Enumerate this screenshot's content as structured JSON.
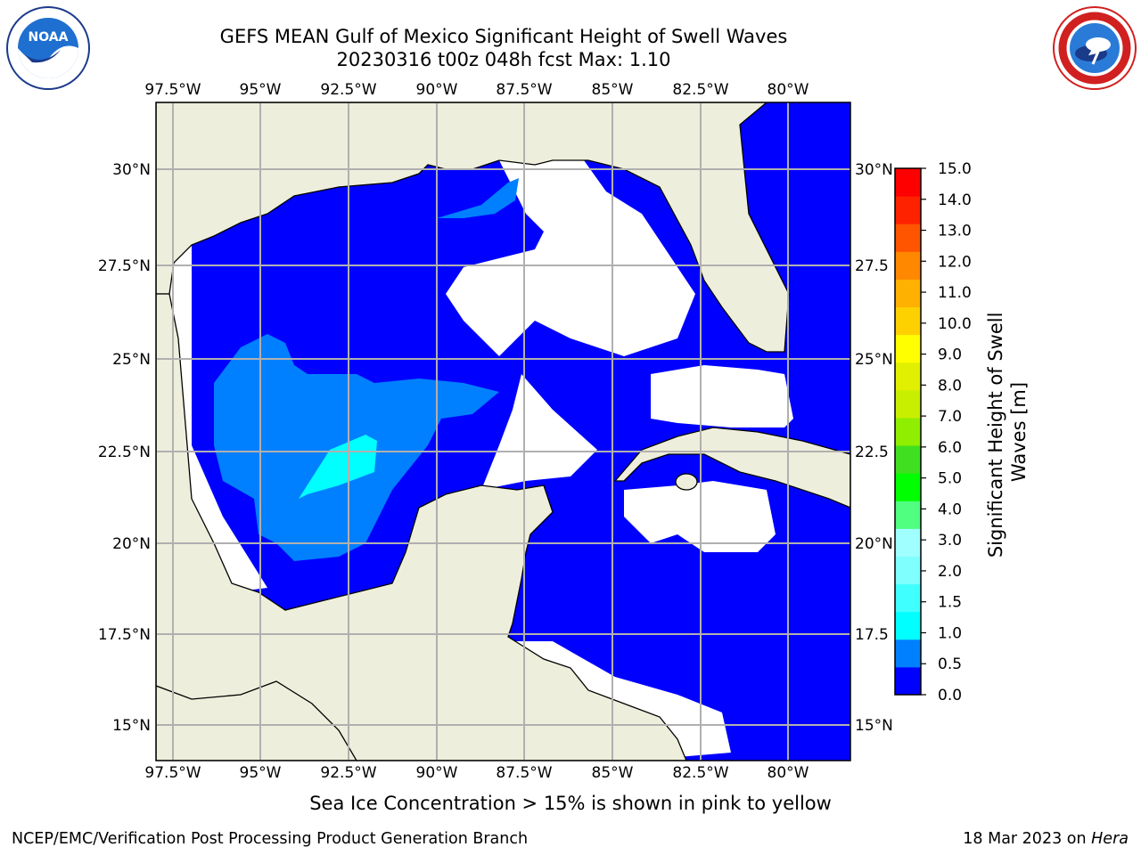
{
  "header": {
    "title_line1": "GEFS MEAN Gulf of Mexico Significant Height of Swell Waves",
    "title_line2": "20230316 t00z 048h fcst   Max: 1.10"
  },
  "logos": {
    "left": {
      "icon": "noaa-logo",
      "text": "NOAA"
    },
    "right": {
      "icon": "national-weather-service-logo"
    }
  },
  "map": {
    "lon_labels": [
      "97.5°W",
      "95°W",
      "92.5°W",
      "90°W",
      "87.5°W",
      "85°W",
      "82.5°W",
      "80°W"
    ],
    "lat_labels_left": [
      "30°N",
      "27.5°N",
      "25°N",
      "22.5°N",
      "20°N",
      "17.5°N",
      "15°N"
    ],
    "lat_labels_right": [
      "30°N",
      "27.5",
      "25°N",
      "22.5",
      "20°N",
      "17.5",
      "15°N"
    ],
    "colors": {
      "land": "#eeeedc",
      "ocean_0_0.5": "#0000ff",
      "ocean_0.5_1.0": "#0080ff",
      "ocean_1.0_1.5": "#00ffff",
      "no_data": "#ffffff",
      "grid": "#b0b0b0"
    }
  },
  "colorbar": {
    "label": "Significant Height of Swell Waves [m]",
    "ticks": [
      "0.0",
      "0.5",
      "1.0",
      "1.5",
      "2.0",
      "3.0",
      "4.0",
      "5.0",
      "6.0",
      "7.0",
      "8.0",
      "9.0",
      "10.0",
      "11.0",
      "12.0",
      "13.0",
      "14.0",
      "15.0"
    ],
    "colors": [
      "#0000ff",
      "#0080ff",
      "#00ffff",
      "#40ffff",
      "#80ffff",
      "#a0ffff",
      "#50ff80",
      "#00ff00",
      "#40e020",
      "#90ee00",
      "#c8ee00",
      "#e0f000",
      "#ffff00",
      "#ffd000",
      "#ffb000",
      "#ff8800",
      "#ff5500",
      "#ff2200",
      "#ff0000"
    ]
  },
  "bottom_note": "Sea Ice Concentration > 15% is shown in pink to yellow",
  "footer": {
    "left": "NCEP/EMC/Verification Post Processing Product Generation Branch",
    "right_prefix": "18 Mar 2023 on ",
    "right_host": "Hera"
  }
}
